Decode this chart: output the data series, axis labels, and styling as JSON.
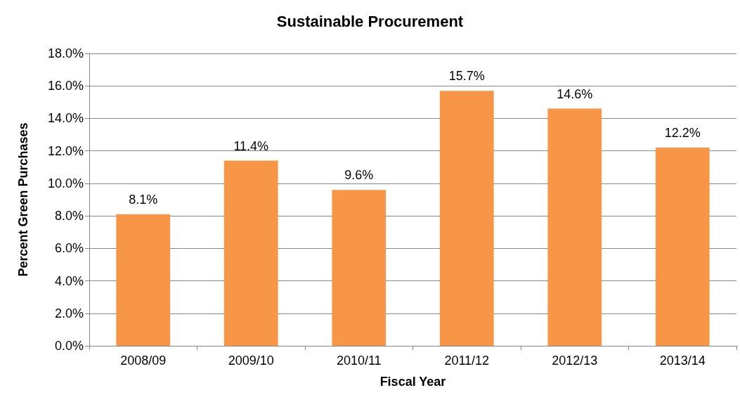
{
  "chart_data": {
    "type": "bar",
    "title": "Sustainable Procurement",
    "xlabel": "Fiscal Year",
    "ylabel": "Percent Green Purchases",
    "categories": [
      "2008/09",
      "2009/10",
      "2010/11",
      "2011/12",
      "2012/13",
      "2013/14"
    ],
    "values": [
      8.1,
      11.4,
      9.6,
      15.7,
      14.6,
      12.2
    ],
    "value_labels": [
      "8.1%",
      "11.4%",
      "9.6%",
      "15.7%",
      "14.6%",
      "12.2%"
    ],
    "color": "#f79646",
    "ylim": [
      0,
      18
    ],
    "yticks": [
      {
        "value": 0,
        "label": "0.0%"
      },
      {
        "value": 2,
        "label": "2.0%"
      },
      {
        "value": 4,
        "label": "4.0%"
      },
      {
        "value": 6,
        "label": "6.0%"
      },
      {
        "value": 8,
        "label": "8.0%"
      },
      {
        "value": 10,
        "label": "10.0%"
      },
      {
        "value": 12,
        "label": "12.0%"
      },
      {
        "value": 14,
        "label": "14.0%"
      },
      {
        "value": 16,
        "label": "16.0%"
      },
      {
        "value": 18,
        "label": "18.0%"
      }
    ],
    "grid": "y"
  }
}
